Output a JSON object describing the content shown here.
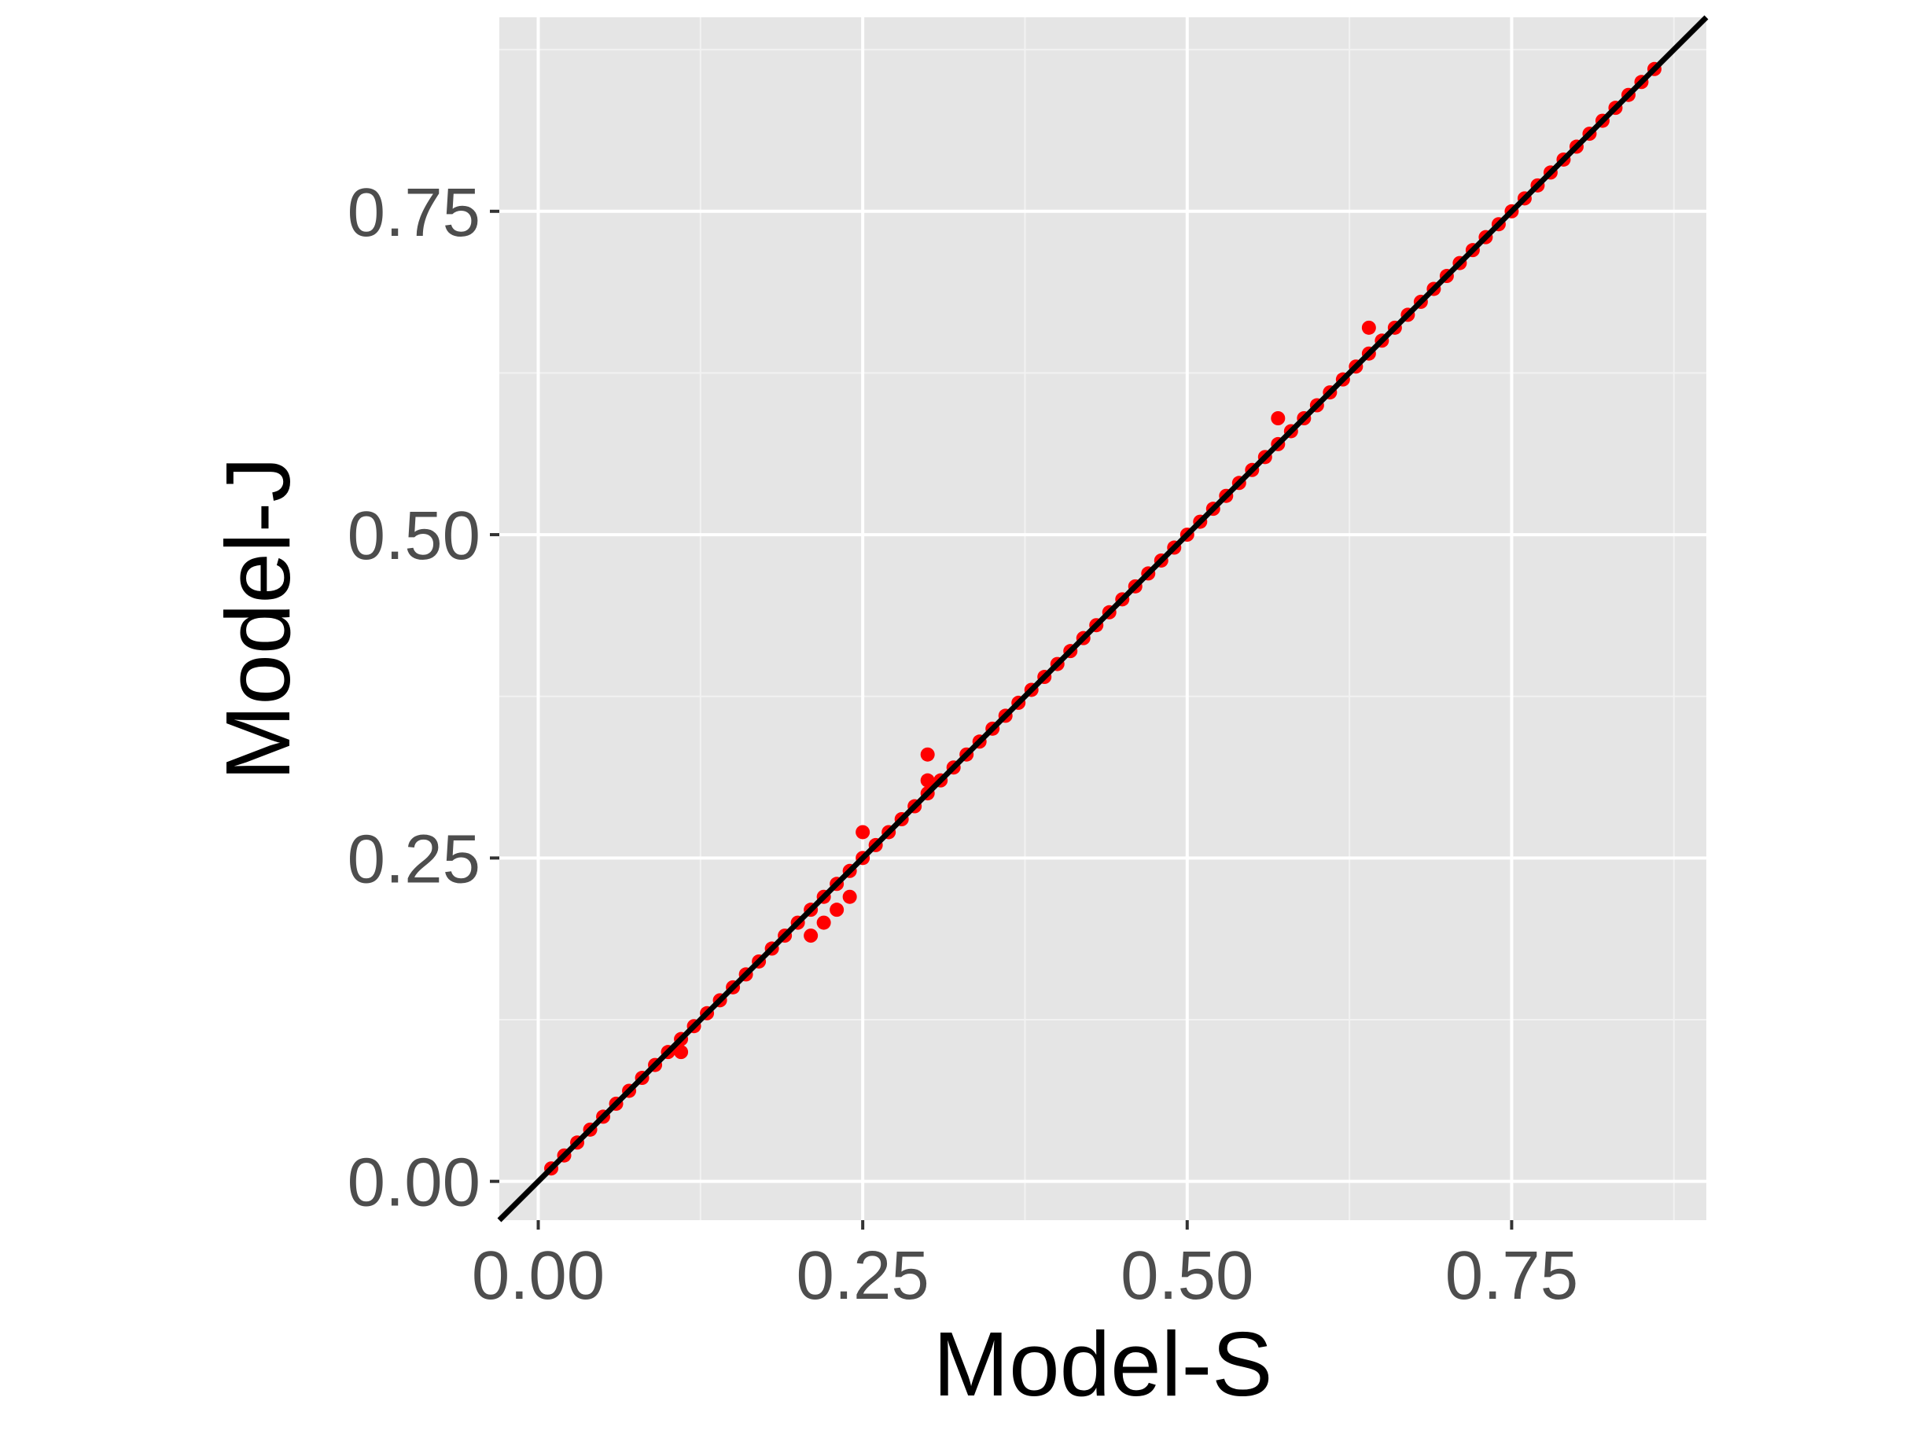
{
  "chart_data": {
    "type": "scatter",
    "title": "",
    "xlabel": "Model-S",
    "ylabel": "Model-J",
    "xlim": [
      -0.03,
      0.9
    ],
    "ylim": [
      -0.03,
      0.9
    ],
    "x_ticks": [
      0.0,
      0.25,
      0.5,
      0.75
    ],
    "y_ticks": [
      0.0,
      0.25,
      0.5,
      0.75
    ],
    "x_tick_labels": [
      "0.00",
      "0.25",
      "0.50",
      "0.75"
    ],
    "y_tick_labels": [
      "0.00",
      "0.25",
      "0.50",
      "0.75"
    ],
    "grid": true,
    "point_color": "#ff0000",
    "reference_line": {
      "type": "identity",
      "slope": 1,
      "intercept": 0,
      "color": "#000000"
    },
    "series": [
      {
        "x": [
          0.01,
          0.02,
          0.03,
          0.04,
          0.05,
          0.06,
          0.07,
          0.08,
          0.09,
          0.1,
          0.11,
          0.12,
          0.13,
          0.14,
          0.15,
          0.16,
          0.17,
          0.18,
          0.19,
          0.2,
          0.21,
          0.22,
          0.23,
          0.24,
          0.25,
          0.26,
          0.27,
          0.28,
          0.29,
          0.3,
          0.31,
          0.32,
          0.33,
          0.34,
          0.35,
          0.36,
          0.37,
          0.38,
          0.39,
          0.4,
          0.41,
          0.42,
          0.43,
          0.44,
          0.45,
          0.46,
          0.47,
          0.48,
          0.49,
          0.5,
          0.51,
          0.52,
          0.53,
          0.54,
          0.55,
          0.56,
          0.57,
          0.58,
          0.59,
          0.6,
          0.61,
          0.62,
          0.63,
          0.64,
          0.65,
          0.66,
          0.67,
          0.68,
          0.69,
          0.7,
          0.71,
          0.72,
          0.73,
          0.74,
          0.75,
          0.76,
          0.77,
          0.78,
          0.79,
          0.8,
          0.81,
          0.82,
          0.83,
          0.84,
          0.85,
          0.86,
          0.21,
          0.22,
          0.23,
          0.24,
          0.25,
          0.3,
          0.3,
          0.57,
          0.64,
          0.11
        ],
        "y": [
          0.01,
          0.02,
          0.03,
          0.04,
          0.05,
          0.06,
          0.07,
          0.08,
          0.09,
          0.1,
          0.11,
          0.12,
          0.13,
          0.14,
          0.15,
          0.16,
          0.17,
          0.18,
          0.19,
          0.2,
          0.21,
          0.22,
          0.23,
          0.24,
          0.25,
          0.26,
          0.27,
          0.28,
          0.29,
          0.3,
          0.31,
          0.32,
          0.33,
          0.34,
          0.35,
          0.36,
          0.37,
          0.38,
          0.39,
          0.4,
          0.41,
          0.42,
          0.43,
          0.44,
          0.45,
          0.46,
          0.47,
          0.48,
          0.49,
          0.5,
          0.51,
          0.52,
          0.53,
          0.54,
          0.55,
          0.56,
          0.57,
          0.58,
          0.59,
          0.6,
          0.61,
          0.62,
          0.63,
          0.64,
          0.65,
          0.66,
          0.67,
          0.68,
          0.69,
          0.7,
          0.71,
          0.72,
          0.73,
          0.74,
          0.75,
          0.76,
          0.77,
          0.78,
          0.79,
          0.8,
          0.81,
          0.82,
          0.83,
          0.84,
          0.85,
          0.86,
          0.19,
          0.2,
          0.21,
          0.22,
          0.27,
          0.31,
          0.33,
          0.59,
          0.66,
          0.1
        ]
      }
    ]
  }
}
